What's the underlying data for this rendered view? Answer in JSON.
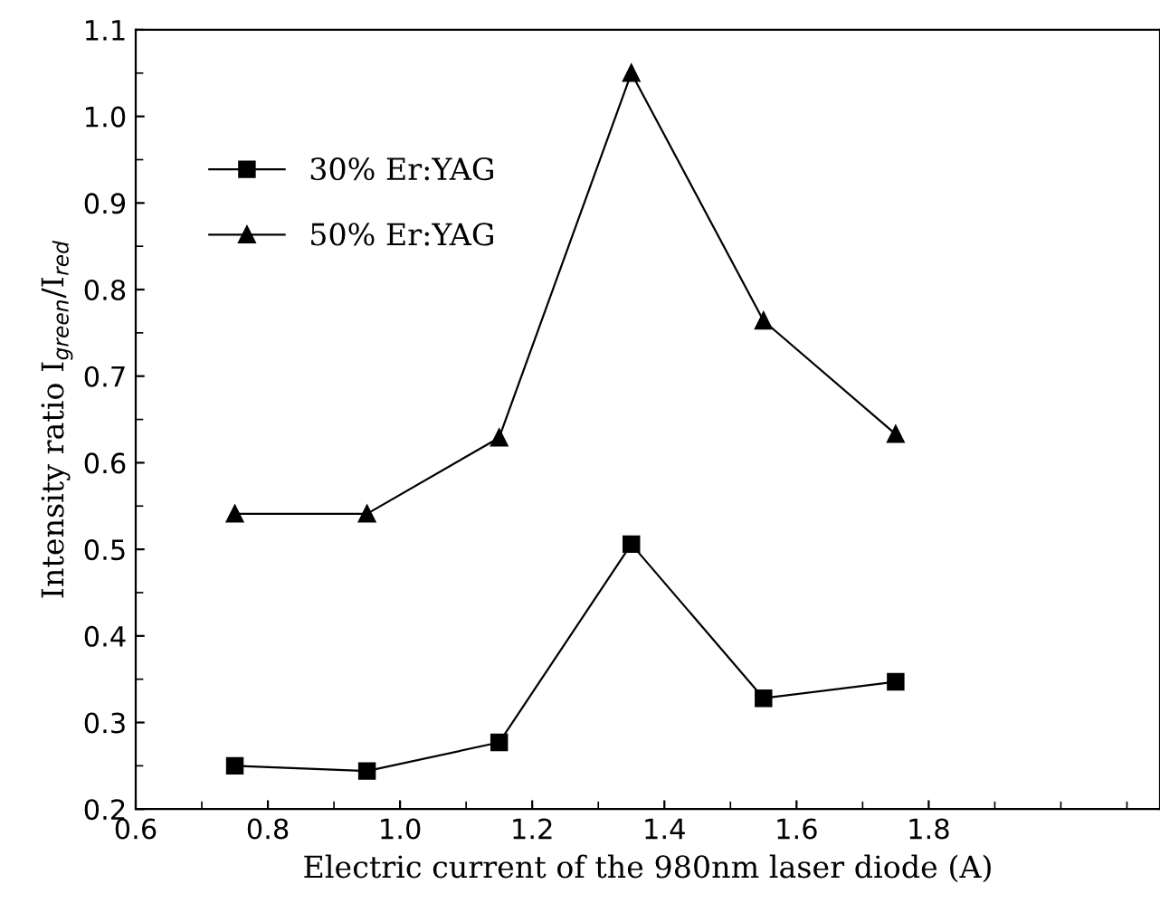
{
  "chart_data": {
    "type": "line",
    "xlabel": "Electric current of the 980nm laser diode (A)",
    "ylabel": "Intensity ratio I$_{green}$/I$_{red}$",
    "x": [
      0.75,
      0.95,
      1.15,
      1.35,
      1.55,
      1.75
    ],
    "series": [
      {
        "name": "30% Er:YAG",
        "color": "#000000",
        "marker": "square",
        "values": [
          0.25,
          0.244,
          0.277,
          0.506,
          0.328,
          0.347
        ]
      },
      {
        "name": "50% Er:YAG",
        "color": "#000000",
        "marker": "triangle",
        "values": [
          0.541,
          0.541,
          0.629,
          1.05,
          0.764,
          0.633
        ]
      }
    ],
    "xlim": [
      0.6,
      2.15
    ],
    "xticks": [
      0.6,
      0.8,
      {
        "value": 1,
        "label": "1.0"
      },
      1.2,
      1.4,
      1.6,
      1.8
    ],
    "ylim": [
      0.2,
      1.1
    ],
    "yticks": [
      0.2,
      0.3,
      0.4,
      0.5,
      0.6,
      0.7,
      0.8,
      0.9,
      {
        "value": 1,
        "label": "1.0"
      },
      1.1
    ],
    "line_style": "solid",
    "grid": false,
    "legend": "top left"
  }
}
